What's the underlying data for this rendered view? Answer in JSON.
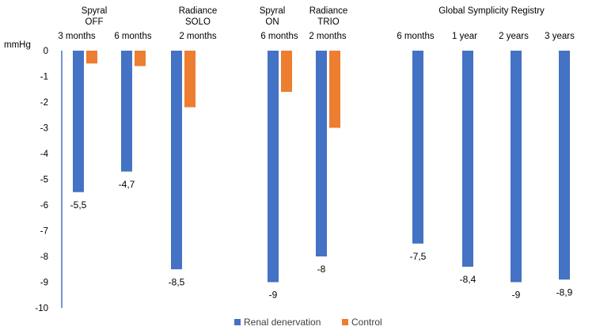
{
  "chart_data": {
    "type": "bar",
    "ylabel": "mmHg",
    "ylim": [
      -10,
      0
    ],
    "yticks": [
      0,
      -1,
      -2,
      -3,
      -4,
      -5,
      -6,
      -7,
      -8,
      -9,
      -10
    ],
    "grid": false,
    "legend_position": "bottom",
    "colors": {
      "renal": "#4472C4",
      "control": "#ED7D31"
    },
    "series": [
      {
        "key": "renal",
        "name": "Renal denervation",
        "values": [
          -5.5,
          -4.7,
          -8.5,
          -9,
          -8,
          -7.5,
          -8.4,
          -9,
          -8.9
        ]
      },
      {
        "key": "control",
        "name": "Control",
        "values": [
          -0.5,
          -0.6,
          -2.2,
          -1.6,
          -3.0,
          null,
          null,
          null,
          null
        ]
      }
    ],
    "categories": [
      "3  months",
      "6 months",
      "2 months",
      "6  months",
      "2 months",
      "6 months",
      "1 year",
      "2 years",
      "3 years"
    ],
    "data_labels": [
      "-5,5",
      "-4,7",
      "-8,5",
      "-9",
      "-8",
      "-7,5",
      "-8,4",
      "-9",
      "-8,9"
    ],
    "groups": [
      {
        "lines": [
          "Spyral",
          "OFF"
        ],
        "categories": [
          0,
          1
        ]
      },
      {
        "lines": [
          "Radiance",
          "SOLO"
        ],
        "categories": [
          2
        ]
      },
      {
        "lines": [
          "Spyral",
          "ON"
        ],
        "categories": [
          3
        ]
      },
      {
        "lines": [
          "Radiance",
          "TRIO"
        ],
        "categories": [
          4
        ]
      },
      {
        "lines": [
          "Global Symplicity Registry"
        ],
        "categories": [
          5,
          6,
          7,
          8
        ]
      }
    ]
  }
}
